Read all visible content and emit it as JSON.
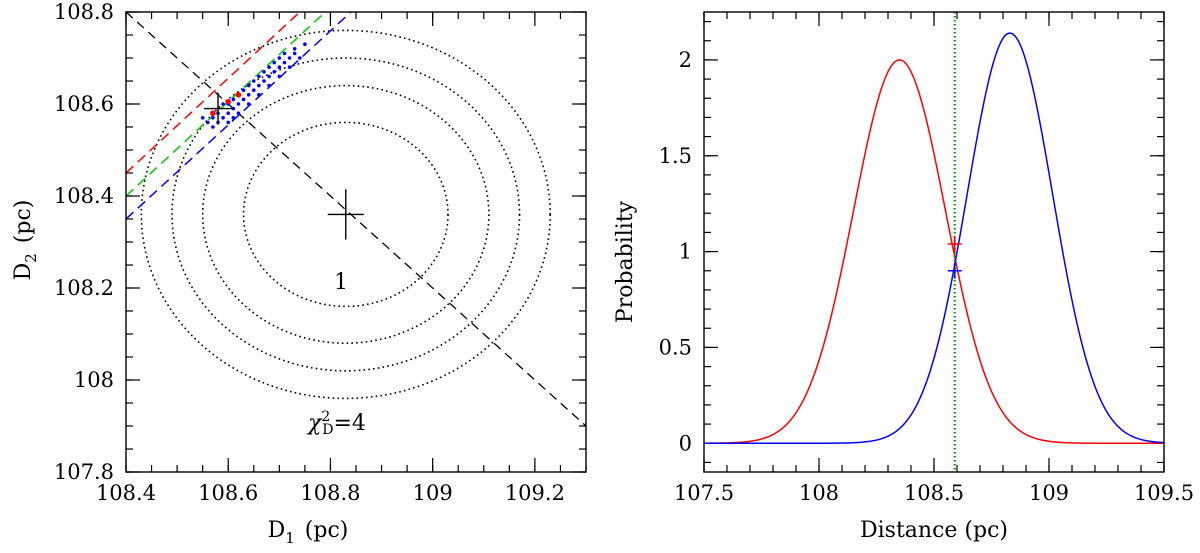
{
  "chart_data": [
    {
      "type": "scatter",
      "xlabel": "D",
      "xlabel_sub": "1",
      "xlabel_unit": "(pc)",
      "ylabel": "D",
      "ylabel_sub": "2",
      "ylabel_unit": "(pc)",
      "xlim": [
        108.4,
        109.3
      ],
      "ylim": [
        107.8,
        108.8
      ],
      "xticks": [
        108.4,
        108.6,
        108.8,
        109,
        109.2
      ],
      "xtick_labels": [
        "108.4",
        "108.6",
        "108.8",
        "109",
        "109.2"
      ],
      "yticks": [
        107.8,
        108,
        108.2,
        108.4,
        108.6,
        108.8
      ],
      "ytick_labels": [
        "107.8",
        "108",
        "108.2",
        "108.4",
        "108.6",
        "108.8"
      ],
      "center": [
        108.83,
        108.36
      ],
      "contour_radii": [
        0.2,
        0.28,
        0.34,
        0.4
      ],
      "contour_label_inner": "1",
      "contour_label_outer_prefix": "χ",
      "contour_label_outer_sup": "2",
      "contour_label_outer_sub": "D",
      "contour_label_outer_value": "=4",
      "antidiagonal": {
        "x": [
          108.4,
          109.3
        ],
        "y": [
          108.8,
          107.9
        ]
      },
      "bands": [
        {
          "name": "red",
          "color": "#ff0000",
          "x": [
            108.4,
            108.74
          ],
          "y": [
            108.45,
            108.8
          ]
        },
        {
          "name": "green",
          "color": "#00cc00",
          "x": [
            108.4,
            108.79
          ],
          "y": [
            108.4,
            108.8
          ]
        },
        {
          "name": "blue",
          "color": "#0000ff",
          "x": [
            108.4,
            108.84
          ],
          "y": [
            108.35,
            108.8
          ]
        }
      ],
      "best_fit_marker": [
        108.58,
        108.59
      ],
      "blue_points": [
        [
          108.56,
          108.56
        ],
        [
          108.57,
          108.57
        ],
        [
          108.58,
          108.56
        ],
        [
          108.59,
          108.57
        ],
        [
          108.6,
          108.58
        ],
        [
          108.61,
          108.59
        ],
        [
          108.62,
          108.6
        ],
        [
          108.63,
          108.61
        ],
        [
          108.64,
          108.62
        ],
        [
          108.65,
          108.63
        ],
        [
          108.66,
          108.64
        ],
        [
          108.67,
          108.65
        ],
        [
          108.68,
          108.66
        ],
        [
          108.69,
          108.67
        ],
        [
          108.7,
          108.68
        ],
        [
          108.71,
          108.69
        ],
        [
          108.72,
          108.7
        ],
        [
          108.73,
          108.71
        ],
        [
          108.57,
          108.55
        ],
        [
          108.6,
          108.56
        ],
        [
          108.62,
          108.58
        ],
        [
          108.64,
          108.6
        ],
        [
          108.66,
          108.62
        ],
        [
          108.68,
          108.64
        ],
        [
          108.7,
          108.66
        ],
        [
          108.72,
          108.68
        ],
        [
          108.74,
          108.7
        ],
        [
          108.59,
          108.6
        ],
        [
          108.61,
          108.61
        ],
        [
          108.63,
          108.63
        ],
        [
          108.65,
          108.65
        ],
        [
          108.67,
          108.67
        ],
        [
          108.69,
          108.69
        ],
        [
          108.71,
          108.71
        ],
        [
          108.58,
          108.58
        ],
        [
          108.6,
          108.6
        ],
        [
          108.66,
          108.66
        ],
        [
          108.7,
          108.7
        ],
        [
          108.73,
          108.72
        ],
        [
          108.55,
          108.57
        ],
        [
          108.62,
          108.62
        ],
        [
          108.68,
          108.68
        ],
        [
          108.75,
          108.73
        ],
        [
          108.64,
          108.64
        ],
        [
          108.61,
          108.57
        ]
      ],
      "red_points": [
        [
          108.57,
          108.58
        ],
        [
          108.6,
          108.605
        ],
        [
          108.62,
          108.62
        ]
      ]
    },
    {
      "type": "line",
      "xlabel": "Distance (pc)",
      "ylabel": "Probability",
      "xlim": [
        107.5,
        109.5
      ],
      "ylim": [
        -0.15,
        2.25
      ],
      "xticks": [
        107.5,
        108,
        108.5,
        109,
        109.5
      ],
      "xtick_labels": [
        "107.5",
        "108",
        "108.5",
        "109",
        "109.5"
      ],
      "yticks": [
        0,
        0.5,
        1,
        1.5,
        2
      ],
      "ytick_labels": [
        "0",
        "0.5",
        "1",
        "1.5",
        "2"
      ],
      "series": [
        {
          "name": "red",
          "color": "#ff0000",
          "mean": 108.35,
          "sigma": 0.2,
          "peak": 2.0
        },
        {
          "name": "blue",
          "color": "#0000ff",
          "mean": 108.83,
          "sigma": 0.186,
          "peak": 2.14
        }
      ],
      "vline": {
        "x": 108.59,
        "color": "#009900"
      },
      "cross_markers": [
        {
          "name": "red",
          "color": "#ff0000",
          "x": 108.59,
          "y": 1.04
        },
        {
          "name": "blue",
          "color": "#0000ff",
          "x": 108.59,
          "y": 0.9
        }
      ]
    }
  ]
}
